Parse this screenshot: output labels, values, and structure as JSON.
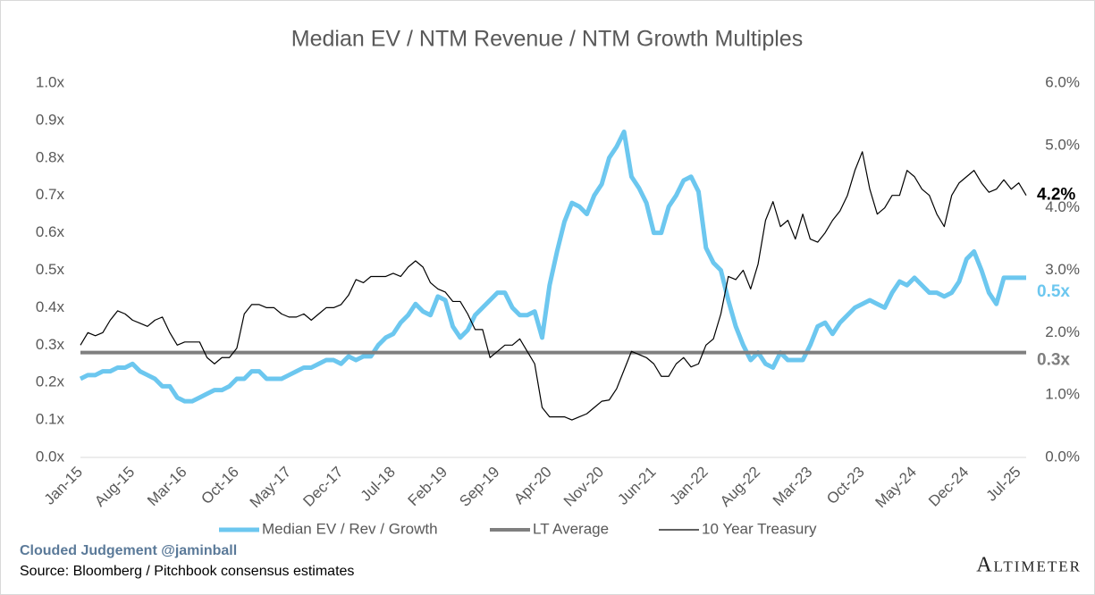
{
  "chart_data": {
    "type": "line",
    "title": "Median EV / NTM Revenue / NTM Growth Multiples",
    "categories": [
      "Jan-15",
      null,
      null,
      null,
      null,
      null,
      null,
      "Aug-15",
      null,
      null,
      null,
      null,
      null,
      null,
      "Mar-16",
      null,
      null,
      null,
      null,
      null,
      null,
      "Oct-16",
      null,
      null,
      null,
      null,
      null,
      null,
      "May-17",
      null,
      null,
      null,
      null,
      null,
      null,
      "Dec-17",
      null,
      null,
      null,
      null,
      null,
      null,
      "Jul-18",
      null,
      null,
      null,
      null,
      null,
      null,
      "Feb-19",
      null,
      null,
      null,
      null,
      null,
      null,
      "Sep-19",
      null,
      null,
      null,
      null,
      null,
      null,
      "Apr-20",
      null,
      null,
      null,
      null,
      null,
      null,
      "Nov-20",
      null,
      null,
      null,
      null,
      null,
      null,
      "Jun-21",
      null,
      null,
      null,
      null,
      null,
      null,
      "Jan-22",
      null,
      null,
      null,
      null,
      null,
      null,
      "Aug-22",
      null,
      null,
      null,
      null,
      null,
      null,
      "Mar-23",
      null,
      null,
      null,
      null,
      null,
      null,
      "Oct-23",
      null,
      null,
      null,
      null,
      null,
      null,
      "May-24",
      null,
      null,
      null,
      null,
      null,
      null,
      "Dec-24",
      null,
      null,
      null,
      null,
      null,
      null,
      "Jul-25",
      null
    ],
    "series": [
      {
        "name": "Median EV / Rev / Growth",
        "color": "#6cc7ef",
        "end_label": "0.5x",
        "values": [
          0.21,
          0.22,
          0.22,
          0.23,
          0.23,
          0.24,
          0.24,
          0.25,
          0.23,
          0.22,
          0.21,
          0.19,
          0.19,
          0.16,
          0.15,
          0.15,
          0.16,
          0.17,
          0.18,
          0.18,
          0.19,
          0.21,
          0.21,
          0.23,
          0.23,
          0.21,
          0.21,
          0.21,
          0.22,
          0.23,
          0.24,
          0.24,
          0.25,
          0.26,
          0.26,
          0.25,
          0.27,
          0.26,
          0.27,
          0.27,
          0.3,
          0.32,
          0.33,
          0.36,
          0.38,
          0.41,
          0.39,
          0.38,
          0.43,
          0.42,
          0.35,
          0.32,
          0.34,
          0.38,
          0.4,
          0.42,
          0.44,
          0.44,
          0.4,
          0.38,
          0.38,
          0.39,
          0.32,
          0.46,
          0.55,
          0.63,
          0.68,
          0.67,
          0.65,
          0.7,
          0.73,
          0.8,
          0.83,
          0.87,
          0.75,
          0.72,
          0.68,
          0.6,
          0.6,
          0.67,
          0.7,
          0.74,
          0.75,
          0.71,
          0.56,
          0.52,
          0.5,
          0.42,
          0.35,
          0.3,
          0.26,
          0.28,
          0.25,
          0.24,
          0.28,
          0.26,
          0.26,
          0.26,
          0.3,
          0.35,
          0.36,
          0.33,
          0.36,
          0.38,
          0.4,
          0.41,
          0.42,
          0.41,
          0.4,
          0.44,
          0.47,
          0.46,
          0.48,
          0.46,
          0.44,
          0.44,
          0.43,
          0.44,
          0.47,
          0.53,
          0.55,
          0.5,
          0.44,
          0.41,
          0.48,
          0.48,
          0.48,
          0.48
        ]
      },
      {
        "name": "LT Average",
        "color": "#7f7f7f",
        "value": 0.28,
        "end_label": "0.3x"
      },
      {
        "name": "10 Year Treasury",
        "color": "#000000",
        "axis": "y2",
        "end_label": "4.2%",
        "values": [
          1.8,
          2.0,
          1.95,
          2.0,
          2.2,
          2.35,
          2.3,
          2.2,
          2.15,
          2.1,
          2.2,
          2.25,
          2.0,
          1.8,
          1.85,
          1.85,
          1.85,
          1.6,
          1.5,
          1.6,
          1.6,
          1.75,
          2.3,
          2.45,
          2.45,
          2.4,
          2.4,
          2.3,
          2.25,
          2.25,
          2.3,
          2.2,
          2.3,
          2.4,
          2.4,
          2.45,
          2.6,
          2.85,
          2.8,
          2.9,
          2.9,
          2.9,
          2.95,
          2.9,
          3.05,
          3.15,
          3.05,
          2.8,
          2.7,
          2.65,
          2.5,
          2.5,
          2.3,
          2.05,
          2.05,
          1.6,
          1.7,
          1.8,
          1.8,
          1.9,
          1.7,
          1.5,
          0.8,
          0.65,
          0.65,
          0.65,
          0.6,
          0.65,
          0.7,
          0.8,
          0.9,
          0.92,
          1.1,
          1.4,
          1.7,
          1.65,
          1.6,
          1.5,
          1.3,
          1.3,
          1.5,
          1.6,
          1.45,
          1.5,
          1.8,
          1.9,
          2.3,
          2.9,
          2.85,
          3.0,
          2.7,
          3.1,
          3.8,
          4.1,
          3.7,
          3.8,
          3.5,
          3.9,
          3.5,
          3.45,
          3.6,
          3.8,
          3.95,
          4.2,
          4.6,
          4.9,
          4.3,
          3.9,
          4.0,
          4.2,
          4.2,
          4.6,
          4.5,
          4.3,
          4.2,
          3.9,
          3.7,
          4.2,
          4.4,
          4.5,
          4.6,
          4.4,
          4.25,
          4.3,
          4.45,
          4.3,
          4.4,
          4.2
        ]
      }
    ],
    "ylim": [
      0,
      1
    ],
    "yticks": [
      {
        "value": 0,
        "label": "0.0x"
      },
      {
        "value": 0.1,
        "label": "0.1x"
      },
      {
        "value": 0.2,
        "label": "0.2x"
      },
      {
        "value": 0.3,
        "label": "0.3x"
      },
      {
        "value": 0.4,
        "label": "0.4x"
      },
      {
        "value": 0.5,
        "label": "0.5x"
      },
      {
        "value": 0.6,
        "label": "0.6x"
      },
      {
        "value": 0.7,
        "label": "0.7x"
      },
      {
        "value": 0.8,
        "label": "0.8x"
      },
      {
        "value": 0.9,
        "label": "0.9x"
      },
      {
        "value": 1,
        "label": "1.0x"
      }
    ],
    "y2lim": [
      0,
      6
    ],
    "y2ticks": [
      {
        "value": 0,
        "label": "0.0%"
      },
      {
        "value": 1,
        "label": "1.0%"
      },
      {
        "value": 2,
        "label": "2.0%"
      },
      {
        "value": 3,
        "label": "3.0%"
      },
      {
        "value": 4,
        "label": "4.0%"
      },
      {
        "value": 5,
        "label": "5.0%"
      },
      {
        "value": 6,
        "label": "6.0%"
      }
    ],
    "legend": "bottom",
    "footer": {
      "credit": "Clouded Judgement @jaminball",
      "source": "Source: Bloomberg / Pitchbook consensus estimates",
      "brand": "Altimeter"
    }
  }
}
